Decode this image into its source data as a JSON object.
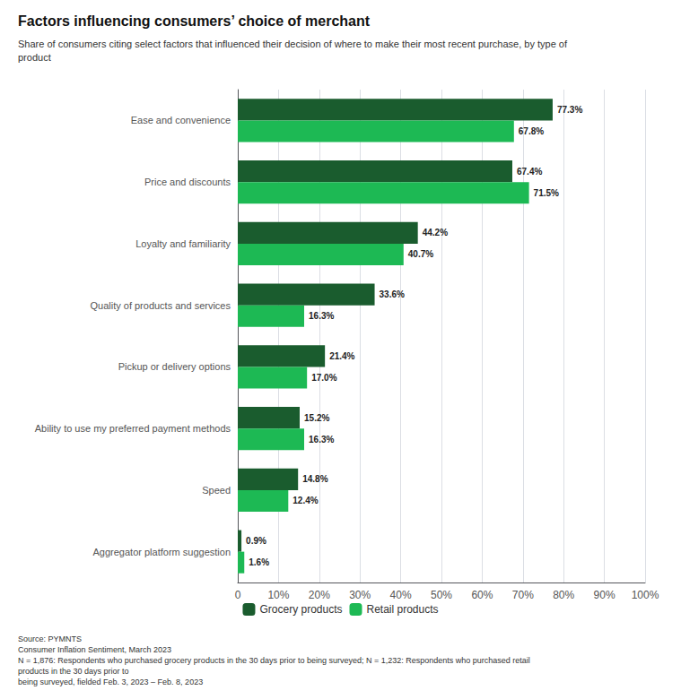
{
  "chart_data": {
    "type": "bar",
    "orientation": "horizontal",
    "title": "Factors influencing consumers’ choice of merchant",
    "subtitle": "Share of consumers citing select factors that influenced their decision of where to make their most recent purchase, by type of\nproduct",
    "source": "Source: PYMNTS\nConsumer Inflation Sentiment, March 2023\nN = 1,876: Respondents who purchased grocery products in the 30 days prior to being surveyed; N = 1,232: Respondents who purchased retail products in the 30 days prior to\nbeing surveyed, fielded Feb. 3, 2023 – Feb. 8, 2023",
    "categories": [
      "Ease and convenience",
      "Price and discounts",
      "Loyalty and familiarity",
      "Quality of products and services",
      "Pickup or delivery options",
      "Ability to use my preferred payment methods",
      "Speed",
      "Aggregator platform suggestion"
    ],
    "series": [
      {
        "name": "Grocery products",
        "color": "#1a5c2e",
        "values": [
          77.3,
          67.4,
          44.2,
          33.6,
          21.4,
          15.2,
          14.8,
          0.9
        ],
        "value_labels": [
          "77.3%",
          "67.4%",
          "44.2%",
          "33.6%",
          "21.4%",
          "15.2%",
          "14.8%",
          "0.9%"
        ]
      },
      {
        "name": "Retail products",
        "color": "#1db954",
        "values": [
          67.8,
          71.5,
          40.7,
          16.3,
          17.0,
          16.3,
          12.4,
          1.6
        ],
        "value_labels": [
          "67.8%",
          "71.5%",
          "40.7%",
          "16.3%",
          "17.0%",
          "16.3%",
          "12.4%",
          "1.6%"
        ]
      }
    ],
    "xlim": [
      0,
      100
    ],
    "xticks": [
      0,
      {
        "value": 10,
        "label": "10%"
      },
      {
        "value": 20,
        "label": "20%"
      },
      {
        "value": 30,
        "label": "30%"
      },
      {
        "value": 40,
        "label": "40%"
      },
      {
        "value": 50,
        "label": "50%"
      },
      {
        "value": 60,
        "label": "60%"
      },
      {
        "value": 70,
        "label": "70%"
      },
      {
        "value": 80,
        "label": "80%"
      },
      {
        "value": 90,
        "label": "90%"
      },
      {
        "value": 100,
        "label": "100%"
      }
    ],
    "data_labels": true,
    "grid": true,
    "legend": "bottom"
  }
}
